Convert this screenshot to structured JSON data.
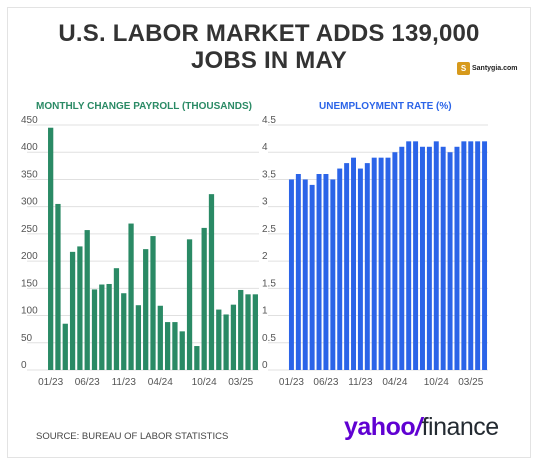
{
  "title_line1": "U.S. LABOR MARKET ADDS 139,000",
  "title_line2": "JOBS IN MAY",
  "watermark": {
    "badge": "S",
    "text": "Santygia.com"
  },
  "source": "SOURCE: BUREAU OF LABOR STATISTICS",
  "logo": {
    "yahoo": "yahoo",
    "slash": "/",
    "finance": "finance"
  },
  "colors": {
    "payroll": "#2a8a65",
    "unemployment": "#2b64e8",
    "title": "#333333",
    "grid": "#e0e0e0"
  },
  "chart_data": [
    {
      "type": "bar",
      "title": "MONTHLY CHANGE PAYROLL (THOUSANDS)",
      "ylim": [
        0,
        450
      ],
      "yticks": [
        0,
        50,
        100,
        150,
        200,
        250,
        300,
        350,
        400,
        450
      ],
      "x_tick_labels": [
        {
          "index": 0,
          "label": "01/23"
        },
        {
          "index": 5,
          "label": "06/23"
        },
        {
          "index": 10,
          "label": "11/23"
        },
        {
          "index": 15,
          "label": "04/24"
        },
        {
          "index": 21,
          "label": "10/24"
        },
        {
          "index": 26,
          "label": "03/25"
        }
      ],
      "categories": [
        "01/23",
        "02/23",
        "03/23",
        "04/23",
        "05/23",
        "06/23",
        "07/23",
        "08/23",
        "09/23",
        "10/23",
        "11/23",
        "12/23",
        "01/24",
        "02/24",
        "03/24",
        "04/24",
        "05/24",
        "06/24",
        "07/24",
        "08/24",
        "09/24",
        "10/24",
        "11/24",
        "12/24",
        "01/25",
        "02/25",
        "03/25",
        "04/25",
        "05/25"
      ],
      "values": [
        445,
        305,
        85,
        217,
        227,
        257,
        148,
        157,
        158,
        187,
        141,
        269,
        119,
        222,
        246,
        118,
        88,
        88,
        71,
        240,
        44,
        261,
        323,
        111,
        102,
        120,
        147,
        139,
        139
      ]
    },
    {
      "type": "bar",
      "title": "UNEMPLOYMENT RATE (%)",
      "ylim": [
        0,
        4.5
      ],
      "yticks": [
        0,
        0.5,
        1,
        1.5,
        2,
        2.5,
        3,
        3.5,
        4,
        4.5
      ],
      "x_tick_labels": [
        {
          "index": 0,
          "label": "01/23"
        },
        {
          "index": 5,
          "label": "06/23"
        },
        {
          "index": 10,
          "label": "11/23"
        },
        {
          "index": 15,
          "label": "04/24"
        },
        {
          "index": 21,
          "label": "10/24"
        },
        {
          "index": 26,
          "label": "03/25"
        }
      ],
      "categories": [
        "01/23",
        "02/23",
        "03/23",
        "04/23",
        "05/23",
        "06/23",
        "07/23",
        "08/23",
        "09/23",
        "10/23",
        "11/23",
        "12/23",
        "01/24",
        "02/24",
        "03/24",
        "04/24",
        "05/24",
        "06/24",
        "07/24",
        "08/24",
        "09/24",
        "10/24",
        "11/24",
        "12/24",
        "01/25",
        "02/25",
        "03/25",
        "04/25",
        "05/25"
      ],
      "values": [
        3.5,
        3.6,
        3.5,
        3.4,
        3.6,
        3.6,
        3.5,
        3.7,
        3.8,
        3.9,
        3.7,
        3.8,
        3.9,
        3.9,
        3.9,
        4.0,
        4.1,
        4.2,
        4.2,
        4.1,
        4.1,
        4.2,
        4.1,
        4.0,
        4.1,
        4.2,
        4.2,
        4.2,
        4.2
      ]
    }
  ]
}
